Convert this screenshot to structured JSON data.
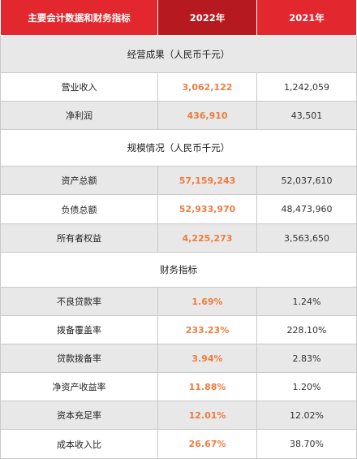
{
  "header": {
    "col_label": "主要会计数据和财务指标",
    "col_2022": "2022年",
    "col_2021": "2021年"
  },
  "sections": [
    {
      "title": "经营成果（人民币千元）",
      "rows": [
        {
          "label": "营业收入",
          "v2022": "3,062,122",
          "v2021": "1,242,059"
        },
        {
          "label": "净利润",
          "v2022": "436,910",
          "v2021": "43,501"
        }
      ]
    },
    {
      "title": "规模情况（人民币千元）",
      "rows": [
        {
          "label": "资产总额",
          "v2022": "57,159,243",
          "v2021": "52,037,610"
        },
        {
          "label": "负债总额",
          "v2022": "52,933,970",
          "v2021": "48,473,960"
        },
        {
          "label": "所有者权益",
          "v2022": "4,225,273",
          "v2021": "3,563,650"
        }
      ]
    },
    {
      "title": "财务指标",
      "rows": [
        {
          "label": "不良贷款率",
          "v2022": "1.69%",
          "v2021": "1.24%"
        },
        {
          "label": "拨备覆盖率",
          "v2022": "233.23%",
          "v2021": "228.10%"
        },
        {
          "label": "贷款拨备率",
          "v2022": "3.94%",
          "v2021": "2.83%"
        },
        {
          "label": "净资产收益率",
          "v2022": "11.88%",
          "v2021": "1.20%"
        },
        {
          "label": "资本充足率",
          "v2022": "12.01%",
          "v2021": "12.02%"
        },
        {
          "label": "成本收入比",
          "v2022": "26.67%",
          "v2021": "38.70%"
        }
      ]
    }
  ],
  "colors": {
    "header_red": "#e2282e",
    "header_dark_red": "#b61a20",
    "highlight_orange": "#f07b3f",
    "row_grey": "#e8e8e8"
  }
}
